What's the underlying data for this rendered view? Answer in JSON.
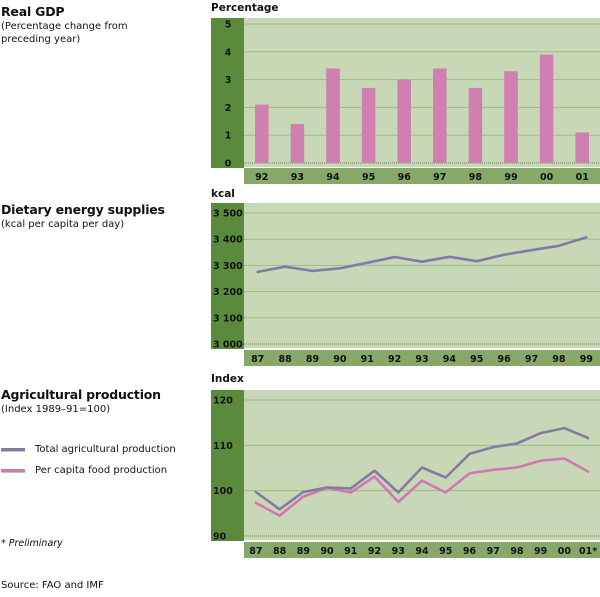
{
  "colors": {
    "plot_bg": "#c8d8b6",
    "axis_dark": "#5a8a3c",
    "axis_light": "#86a96a",
    "grid": "#9dbb85",
    "bar": "#cf7fb0",
    "line_total": "#857aa6",
    "line_percapita": "#d177b4"
  },
  "footnote": "* Preliminary",
  "source": "Source: FAO and IMF",
  "chart_data": [
    {
      "type": "bar",
      "title": "Real GDP",
      "subtitle_line1": "(Percentage change  from",
      "subtitle_line2": "preceding year)",
      "ylabel": "Percentage",
      "categories": [
        "92",
        "93",
        "94",
        "95",
        "96",
        "97",
        "98",
        "99",
        "00",
        "01"
      ],
      "values": [
        2.1,
        1.4,
        3.4,
        2.7,
        3.0,
        3.4,
        2.7,
        3.3,
        3.9,
        1.1
      ],
      "ylim": [
        0,
        5
      ],
      "yticks": [
        0,
        1,
        2,
        3,
        4,
        5
      ],
      "ytick_labels": [
        "0",
        "1",
        "2",
        "3",
        "4",
        "5"
      ],
      "grid": true
    },
    {
      "type": "line",
      "title": "Dietary energy supplies",
      "subtitle_line1": "(kcal per capita per day)",
      "ylabel": "kcal",
      "categories": [
        "87",
        "88",
        "89",
        "90",
        "91",
        "92",
        "93",
        "94",
        "95",
        "96",
        "97",
        "98",
        "99"
      ],
      "series": [
        {
          "name": "Dietary energy supplies",
          "values": [
            3275,
            3295,
            3279,
            3289,
            3310,
            3332,
            3314,
            3333,
            3316,
            3341,
            3358,
            3375,
            3407
          ]
        }
      ],
      "ylim": [
        3000,
        3500
      ],
      "yticks": [
        3000,
        3100,
        3200,
        3300,
        3400,
        3500
      ],
      "ytick_labels": [
        "3 000",
        "3 100",
        "3 200",
        "3 300",
        "3 400",
        "3 500"
      ],
      "grid": true
    },
    {
      "type": "line",
      "title": "Agricultural production",
      "subtitle_line1": "(Index 1989–91=100)",
      "ylabel": "Index",
      "categories": [
        "87",
        "88",
        "89",
        "90",
        "91",
        "92",
        "93",
        "94",
        "95",
        "96",
        "97",
        "98",
        "99",
        "00",
        "01*"
      ],
      "series": [
        {
          "name": "Total agricultural production",
          "values": [
            99.7,
            95.9,
            99.7,
            100.7,
            100.5,
            104.4,
            99.6,
            105.1,
            102.9,
            108.1,
            109.6,
            110.4,
            112.7,
            113.8,
            111.6
          ]
        },
        {
          "name": "Per capita food production",
          "values": [
            97.3,
            94.5,
            98.7,
            100.6,
            99.6,
            103.1,
            97.5,
            102.2,
            99.6,
            103.8,
            104.6,
            105.1,
            106.6,
            107.1,
            104.2
          ]
        }
      ],
      "ylim": [
        90,
        120
      ],
      "yticks": [
        90,
        100,
        110,
        120
      ],
      "ytick_labels": [
        "90",
        "100",
        "110",
        "120"
      ],
      "legend": "left",
      "grid": true
    }
  ]
}
